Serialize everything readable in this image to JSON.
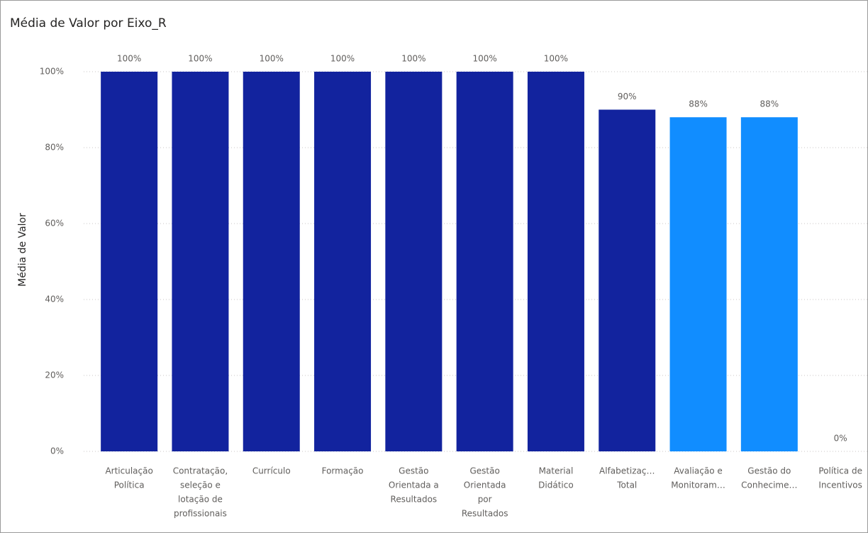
{
  "chart_data": {
    "type": "bar",
    "title": "Média de Valor por Eixo_R",
    "y_label": "Média de Valor",
    "categories": [
      [
        "Articulação",
        "Política"
      ],
      [
        "Contratação,",
        "seleção e",
        "lotação de",
        "profissionais"
      ],
      [
        "Currículo"
      ],
      [
        "Formação"
      ],
      [
        "Gestão",
        "Orientada a",
        "Resultados"
      ],
      [
        "Gestão",
        "Orientada",
        "por",
        "Resultados"
      ],
      [
        "Material",
        "Didático"
      ],
      [
        "Alfabetizaç…",
        "Total"
      ],
      [
        "Avaliação e",
        "Monitoram…"
      ],
      [
        "Gestão do",
        "Conhecime…"
      ],
      [
        "Política de",
        "Incentivos"
      ]
    ],
    "values": [
      100,
      100,
      100,
      100,
      100,
      100,
      100,
      90,
      88,
      88,
      0
    ],
    "value_labels": [
      "100%",
      "100%",
      "100%",
      "100%",
      "100%",
      "100%",
      "100%",
      "90%",
      "88%",
      "88%",
      "0%"
    ],
    "colors": [
      "#12239e",
      "#12239e",
      "#12239e",
      "#12239e",
      "#12239e",
      "#12239e",
      "#12239e",
      "#12239e",
      "#118dff",
      "#118dff",
      "#118dff"
    ],
    "ylim": [
      0,
      100
    ],
    "yticks": [
      {
        "value": 0,
        "label": "0%"
      },
      {
        "value": 20,
        "label": "20%"
      },
      {
        "value": 40,
        "label": "40%"
      },
      {
        "value": 60,
        "label": "60%"
      },
      {
        "value": 80,
        "label": "80%"
      },
      {
        "value": 100,
        "label": "100%"
      }
    ],
    "grid": true
  }
}
